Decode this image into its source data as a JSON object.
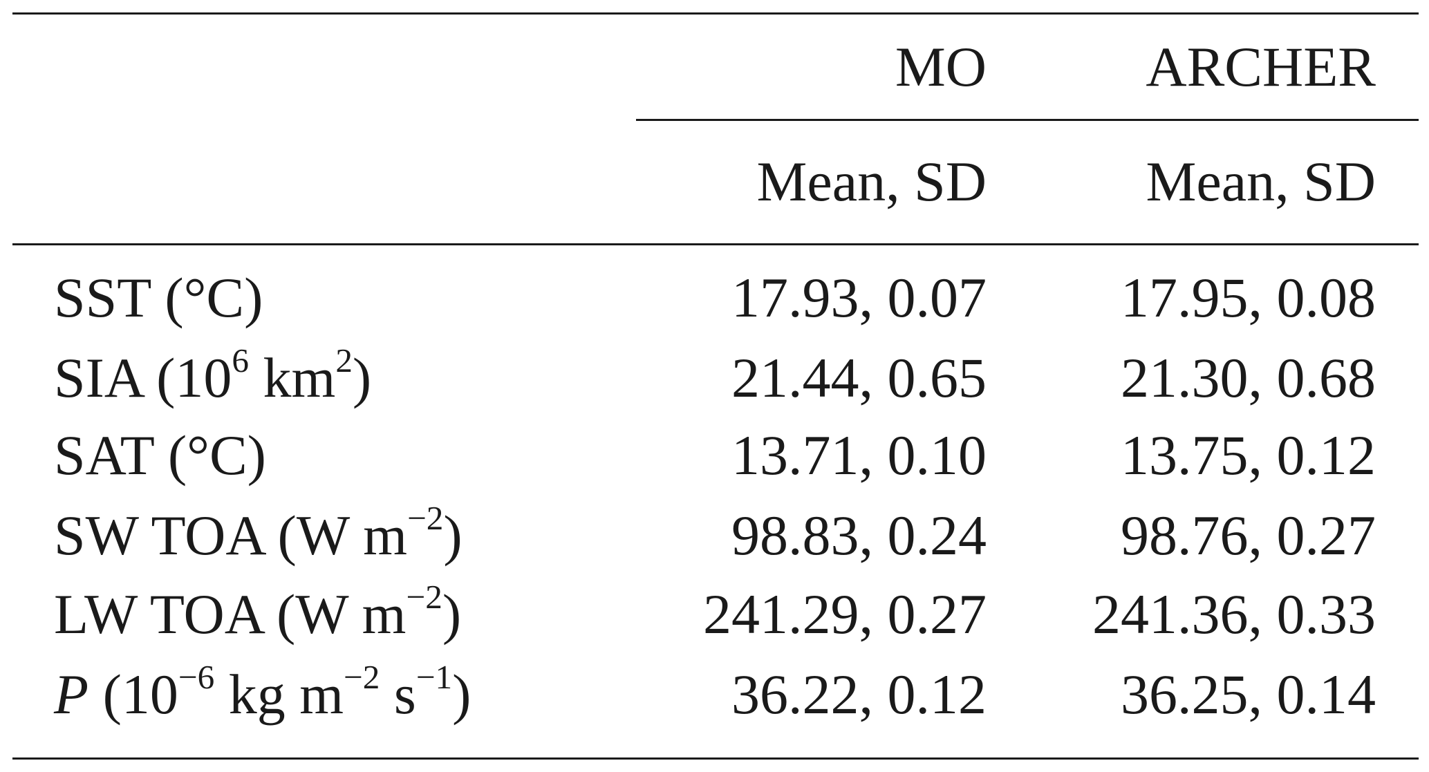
{
  "header": {
    "group_labels": [
      "MO",
      "ARCHER"
    ],
    "sub_labels": [
      "Mean, SD",
      "Mean, SD"
    ]
  },
  "rows": [
    {
      "label_main": "SST (°C)",
      "mo": "17.93, 0.07",
      "archer": "17.95, 0.08"
    },
    {
      "label_pre": "SIA (10",
      "label_sup1": "6",
      "label_mid": " km",
      "label_sup2": "2",
      "label_post": ")",
      "mo": "21.44, 0.65",
      "archer": "21.30, 0.68"
    },
    {
      "label_main": "SAT (°C)",
      "mo": "13.71, 0.10",
      "archer": "13.75, 0.12"
    },
    {
      "label_pre": "SW TOA (W m",
      "label_sup1": "−2",
      "label_post": ")",
      "mo": "98.83, 0.24",
      "archer": "98.76, 0.27"
    },
    {
      "label_pre": "LW TOA (W m",
      "label_sup1": "−2",
      "label_post": ")",
      "mo": "241.29, 0.27",
      "archer": "241.36, 0.33"
    },
    {
      "label_var": "P",
      "label_pre": " (10",
      "label_sup1": "−6",
      "label_mid": " kg m",
      "label_sup2": "−2",
      "label_mid2": " s",
      "label_sup3": "−1",
      "label_post": ")",
      "mo": "36.22, 0.12",
      "archer": "36.25, 0.14"
    }
  ]
}
